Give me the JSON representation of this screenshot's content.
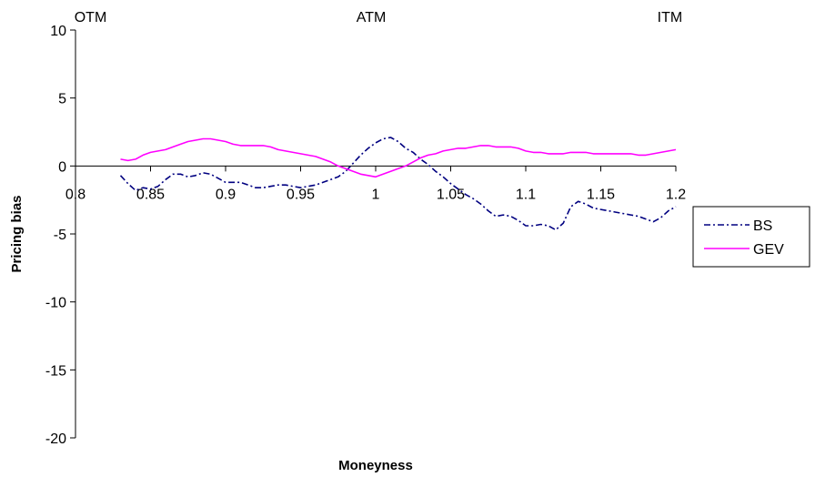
{
  "chart_data": {
    "type": "line",
    "title": "",
    "xlabel": "Moneyness",
    "ylabel": "Pricing bias",
    "xlim": [
      0.8,
      1.2
    ],
    "ylim": [
      -20,
      10
    ],
    "x_ticks": [
      "0.8",
      "0.85",
      "0.9",
      "0.95",
      "1",
      "1.05",
      "1.1",
      "1.15",
      "1.2"
    ],
    "y_ticks": [
      "10",
      "5",
      "0",
      "-5",
      "-10",
      "-15",
      "-20"
    ],
    "grid": false,
    "legend_position": "right",
    "annotations": [
      {
        "text": "OTM",
        "x": 0.81
      },
      {
        "text": "ATM",
        "x": 0.997
      },
      {
        "text": "ITM",
        "x": 1.196
      }
    ],
    "series": [
      {
        "name": "BS",
        "color": "#000080",
        "dash": "dash-dot",
        "x": [
          0.83,
          0.835,
          0.84,
          0.845,
          0.85,
          0.855,
          0.86,
          0.865,
          0.87,
          0.875,
          0.88,
          0.885,
          0.89,
          0.895,
          0.9,
          0.905,
          0.91,
          0.915,
          0.92,
          0.925,
          0.93,
          0.935,
          0.94,
          0.945,
          0.95,
          0.955,
          0.96,
          0.965,
          0.97,
          0.975,
          0.98,
          0.985,
          0.99,
          0.995,
          1.0,
          1.005,
          1.01,
          1.015,
          1.02,
          1.025,
          1.03,
          1.035,
          1.04,
          1.045,
          1.05,
          1.055,
          1.06,
          1.065,
          1.07,
          1.075,
          1.08,
          1.085,
          1.09,
          1.095,
          1.1,
          1.105,
          1.11,
          1.115,
          1.12,
          1.125,
          1.13,
          1.135,
          1.14,
          1.145,
          1.15,
          1.155,
          1.16,
          1.165,
          1.17,
          1.175,
          1.18,
          1.185,
          1.19,
          1.195,
          1.2
        ],
        "values": [
          -0.7,
          -1.3,
          -1.8,
          -1.6,
          -1.7,
          -1.5,
          -1.0,
          -0.6,
          -0.6,
          -0.8,
          -0.7,
          -0.5,
          -0.6,
          -0.9,
          -1.2,
          -1.2,
          -1.2,
          -1.4,
          -1.6,
          -1.6,
          -1.5,
          -1.4,
          -1.4,
          -1.5,
          -1.6,
          -1.5,
          -1.4,
          -1.2,
          -1.0,
          -0.8,
          -0.4,
          0.2,
          0.8,
          1.3,
          1.7,
          2.0,
          2.1,
          1.8,
          1.3,
          1.0,
          0.5,
          0.1,
          -0.4,
          -0.8,
          -1.3,
          -1.7,
          -2.1,
          -2.4,
          -2.8,
          -3.3,
          -3.7,
          -3.6,
          -3.7,
          -4.0,
          -4.4,
          -4.4,
          -4.3,
          -4.4,
          -4.7,
          -4.2,
          -3.0,
          -2.6,
          -2.8,
          -3.1,
          -3.2,
          -3.3,
          -3.4,
          -3.5,
          -3.6,
          -3.7,
          -3.9,
          -4.1,
          -3.8,
          -3.3,
          -3.0
        ]
      },
      {
        "name": "GEV",
        "color": "#ff00ff",
        "dash": "solid",
        "x": [
          0.83,
          0.835,
          0.84,
          0.845,
          0.85,
          0.855,
          0.86,
          0.865,
          0.87,
          0.875,
          0.88,
          0.885,
          0.89,
          0.895,
          0.9,
          0.905,
          0.91,
          0.915,
          0.92,
          0.925,
          0.93,
          0.935,
          0.94,
          0.945,
          0.95,
          0.955,
          0.96,
          0.965,
          0.97,
          0.975,
          0.98,
          0.985,
          0.99,
          0.995,
          1.0,
          1.005,
          1.01,
          1.015,
          1.02,
          1.025,
          1.03,
          1.035,
          1.04,
          1.045,
          1.05,
          1.055,
          1.06,
          1.065,
          1.07,
          1.075,
          1.08,
          1.085,
          1.09,
          1.095,
          1.1,
          1.105,
          1.11,
          1.115,
          1.12,
          1.125,
          1.13,
          1.135,
          1.14,
          1.145,
          1.15,
          1.155,
          1.16,
          1.165,
          1.17,
          1.175,
          1.18,
          1.185,
          1.19,
          1.195,
          1.2
        ],
        "values": [
          0.5,
          0.4,
          0.5,
          0.8,
          1.0,
          1.1,
          1.2,
          1.4,
          1.6,
          1.8,
          1.9,
          2.0,
          2.0,
          1.9,
          1.8,
          1.6,
          1.5,
          1.5,
          1.5,
          1.5,
          1.4,
          1.2,
          1.1,
          1.0,
          0.9,
          0.8,
          0.7,
          0.5,
          0.3,
          0.0,
          -0.2,
          -0.4,
          -0.6,
          -0.7,
          -0.8,
          -0.6,
          -0.4,
          -0.2,
          0.0,
          0.3,
          0.6,
          0.8,
          0.9,
          1.1,
          1.2,
          1.3,
          1.3,
          1.4,
          1.5,
          1.5,
          1.4,
          1.4,
          1.4,
          1.3,
          1.1,
          1.0,
          1.0,
          0.9,
          0.9,
          0.9,
          1.0,
          1.0,
          1.0,
          0.9,
          0.9,
          0.9,
          0.9,
          0.9,
          0.9,
          0.8,
          0.8,
          0.9,
          1.0,
          1.1,
          1.2
        ]
      }
    ]
  }
}
